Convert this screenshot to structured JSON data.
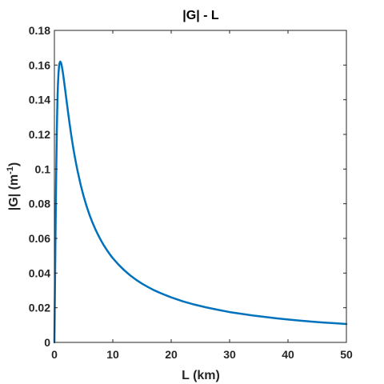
{
  "chart_data": {
    "type": "line",
    "title": "|G|  -  L",
    "xlabel": "L (km)",
    "ylabel": {
      "main": "|G| (m",
      "exponent": "-1",
      "close": ")"
    },
    "xlim": [
      0,
      50
    ],
    "ylim": [
      0,
      0.18
    ],
    "xticks": [
      "0",
      "10",
      "20",
      "30",
      "40",
      "50"
    ],
    "yticks": [
      "0",
      "0.02",
      "0.04",
      "0.06",
      "0.08",
      "0.1",
      "0.12",
      "0.14",
      "0.16",
      "0.18"
    ],
    "grid": false,
    "box": true,
    "series": [
      {
        "color": "#0072BD",
        "x": [
          0,
          0.1,
          0.2,
          0.3,
          0.4,
          0.5,
          0.6,
          0.7,
          0.8,
          0.9,
          1.0,
          1.1,
          1.2,
          1.3,
          1.4,
          1.5,
          1.6,
          1.7,
          1.8,
          1.9,
          2.0,
          2.2,
          2.4,
          2.6,
          2.8,
          3.0,
          3.25,
          3.5,
          3.75,
          4,
          4.5,
          5,
          5.5,
          6,
          6.5,
          7,
          7.5,
          8,
          8.5,
          9,
          9.5,
          10,
          11,
          12,
          13,
          14,
          15,
          16,
          17,
          18,
          19,
          20,
          22,
          24,
          26,
          28,
          30,
          32,
          34,
          36,
          38,
          40,
          42,
          44,
          46,
          48,
          50
        ],
        "y": [
          0,
          0.0326,
          0.0651,
          0.095,
          0.1192,
          0.1367,
          0.1482,
          0.1553,
          0.1594,
          0.1614,
          0.162,
          0.1616,
          0.1605,
          0.1588,
          0.1568,
          0.1545,
          0.1521,
          0.1495,
          0.1469,
          0.1443,
          0.1416,
          0.1364,
          0.1312,
          0.1263,
          0.1215,
          0.117,
          0.1118,
          0.107,
          0.1025,
          0.0984,
          0.0909,
          0.0844,
          0.0787,
          0.0737,
          0.0693,
          0.0654,
          0.0619,
          0.0587,
          0.0558,
          0.0532,
          0.0508,
          0.0486,
          0.0448,
          0.0415,
          0.0386,
          0.0361,
          0.0339,
          0.032,
          0.0302,
          0.0287,
          0.0273,
          0.026,
          0.0237,
          0.0218,
          0.0202,
          0.0188,
          0.0175,
          0.0165,
          0.0155,
          0.0147,
          0.0139,
          0.0132,
          0.0126,
          0.012,
          0.0115,
          0.0111,
          0.0106
        ]
      }
    ]
  }
}
